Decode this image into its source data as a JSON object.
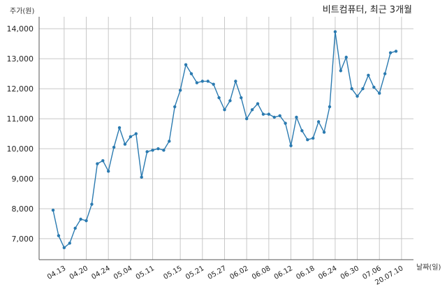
{
  "chart_data": {
    "type": "line",
    "title": "비트컴퓨터, 최근 3개월",
    "ylabel": "주가(원)",
    "xlabel": "날짜(일)",
    "ylim": [
      6300,
      14400
    ],
    "yticks": [
      7000,
      8000,
      9000,
      10000,
      11000,
      12000,
      13000,
      14000
    ],
    "ytick_labels": [
      "7,000",
      "8,000",
      "9,000",
      "10,000",
      "11,000",
      "12,000",
      "13,000",
      "14,000"
    ],
    "xtick_labels": [
      "04.13",
      "04.20",
      "04.24",
      "05.04",
      "05.11",
      "05.15",
      "05.21",
      "05.27",
      "06.02",
      "06.08",
      "06.12",
      "06.18",
      "06.24",
      "06.30",
      "07.06",
      "20.07.10"
    ],
    "xtick_index": [
      2,
      6,
      10,
      14,
      18,
      23,
      27,
      31,
      35,
      39,
      43,
      47,
      51,
      55,
      59,
      63
    ],
    "grid": true,
    "color": "#2a7ab0",
    "series": [
      {
        "values": [
          7950,
          7100,
          6700,
          6850,
          7350,
          7650,
          7600,
          8150,
          9500,
          9600,
          9250,
          10050,
          10700,
          10150,
          10400,
          10500,
          9050,
          9900,
          9950,
          10000,
          9950,
          10250,
          11400,
          11950,
          12800,
          12500,
          12200,
          12250,
          12250,
          12150,
          11700,
          11300,
          11600,
          12250,
          11700,
          11000,
          11300,
          11500,
          11150,
          11150,
          11050,
          11100,
          10850,
          10100,
          11050,
          10600,
          10300,
          10350,
          10900,
          10550,
          11400,
          13900,
          12600,
          13050,
          12000,
          11750,
          12000,
          12450,
          12050,
          11850,
          12500,
          13200,
          13250
        ]
      }
    ]
  }
}
